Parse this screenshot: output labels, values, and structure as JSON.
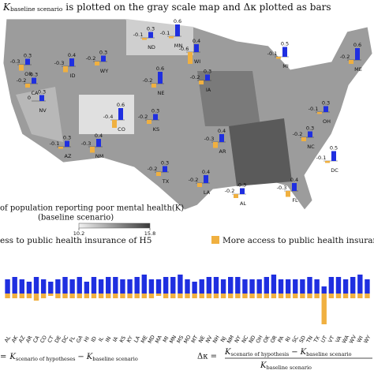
{
  "title": {
    "symbol": "K",
    "subscript": "baseline scenario",
    "text": "is plotted on the gray scale map and Δκ plotted as bars"
  },
  "map": {
    "states": [
      {
        "name": "OR",
        "values": [
          -0.3,
          0.3
        ]
      },
      {
        "name": "ID",
        "values": [
          -0.3,
          0.4
        ]
      },
      {
        "name": "WY",
        "values": [
          -0.2,
          0.3
        ]
      },
      {
        "name": "ND",
        "values": [
          -0.1,
          0.3
        ]
      },
      {
        "name": "MN",
        "values": [
          -0.1,
          0.6
        ]
      },
      {
        "name": "WI",
        "values": [
          -0.6,
          0.4
        ]
      },
      {
        "name": "NE",
        "values": [
          -0.2,
          0.6
        ]
      },
      {
        "name": "IA",
        "values": [
          -0.2,
          0.3
        ]
      },
      {
        "name": "CA",
        "values": [
          -0.2,
          0.3
        ]
      },
      {
        "name": "NV",
        "values": [
          0,
          0.3
        ]
      },
      {
        "name": "CO",
        "values": [
          -0.4,
          0.6
        ]
      },
      {
        "name": "KS",
        "values": [
          -0.2,
          0.3
        ]
      },
      {
        "name": "AZ",
        "values": [
          -0.1,
          0.3
        ]
      },
      {
        "name": "NM",
        "values": [
          -0.3,
          0.4
        ]
      },
      {
        "name": "TX",
        "values": [
          -0.2,
          0.3
        ]
      },
      {
        "name": "AR",
        "values": [
          -0.3,
          0.4
        ]
      },
      {
        "name": "LA",
        "values": [
          -0.2,
          0.4
        ]
      },
      {
        "name": "AL",
        "values": [
          -0.2,
          0.3
        ]
      },
      {
        "name": "FL",
        "values": [
          -0.3,
          0.4
        ]
      },
      {
        "name": "MI",
        "values": [
          -0.1,
          0.5
        ]
      },
      {
        "name": "ME",
        "values": [
          -0.2,
          0.6
        ]
      },
      {
        "name": "OH",
        "values": [
          -0.1,
          0.3
        ]
      },
      {
        "name": "NC",
        "values": [
          -0.2,
          0.3
        ]
      },
      {
        "name": "DC",
        "values": [
          -0.1,
          0.5
        ]
      }
    ]
  },
  "colorbar": {
    "label": "of population reporting poor mental health(K)",
    "sublabel": "(baseline scenario)",
    "ticks": [
      10.2,
      15.8
    ]
  },
  "chart_data": {
    "type": "bar",
    "categories": [
      "AL",
      "AK",
      "AZ",
      "AR",
      "CA",
      "CO",
      "CT",
      "DE",
      "DC",
      "FL",
      "GA",
      "HI",
      "ID",
      "IL",
      "IN",
      "IA",
      "KS",
      "KY",
      "LA",
      "ME",
      "MD",
      "MA",
      "MI",
      "MN",
      "MS",
      "MO",
      "MT",
      "NE",
      "NV",
      "NH",
      "NJ",
      "NM",
      "NY",
      "NC",
      "ND",
      "OH",
      "OK",
      "OR",
      "PA",
      "RI",
      "SC",
      "SD",
      "TN",
      "TX",
      "UT",
      "VT",
      "VA",
      "WA",
      "WV",
      "WI",
      "WY"
    ],
    "series": [
      {
        "name": "ess to public health insurance of H5",
        "color": "#1f2fe0",
        "values": [
          0.6,
          0.7,
          0.6,
          0.5,
          0.7,
          0.6,
          0.5,
          0.6,
          0.7,
          0.6,
          0.7,
          0.5,
          0.7,
          0.6,
          0.7,
          0.7,
          0.6,
          0.6,
          0.7,
          0.8,
          0.6,
          0.6,
          0.7,
          0.7,
          0.8,
          0.6,
          0.5,
          0.6,
          0.7,
          0.7,
          0.6,
          0.7,
          0.7,
          0.6,
          0.6,
          0.6,
          0.7,
          0.8,
          0.6,
          0.6,
          0.6,
          0.6,
          0.7,
          0.6,
          0.3,
          0.7,
          0.7,
          0.6,
          0.7,
          0.8,
          0.6
        ]
      },
      {
        "name": "More access to public health insuran",
        "color": "#f0b040",
        "values": [
          -0.2,
          -0.2,
          -0.2,
          -0.2,
          -0.3,
          -0.2,
          -0.1,
          -0.2,
          -0.2,
          -0.2,
          -0.2,
          -0.2,
          -0.2,
          -0.2,
          -0.2,
          -0.2,
          -0.2,
          -0.2,
          -0.2,
          -0.2,
          -0.2,
          -0.1,
          -0.2,
          -0.2,
          -0.2,
          -0.2,
          -0.2,
          -0.2,
          -0.2,
          -0.2,
          -0.2,
          -0.2,
          -0.2,
          -0.2,
          -0.2,
          -0.2,
          -0.2,
          -0.2,
          -0.2,
          -0.2,
          -0.2,
          -0.2,
          -0.2,
          -0.2,
          -1.3,
          -0.2,
          -0.2,
          -0.2,
          -0.2,
          -0.2,
          -0.2
        ]
      }
    ],
    "ylim": [
      -1.5,
      1.0
    ]
  },
  "formulas": {
    "left": {
      "lhs": "=",
      "a": "K",
      "a_sub": "scenario of hypotheses",
      "minus": "−",
      "b": "K",
      "b_sub": "baseline scenario"
    },
    "right": {
      "lhs": "Δκ =",
      "a": "K",
      "a_sub": "scenario of hypothesis",
      "minus": "−",
      "b": "K",
      "b_sub": "baseline scenario",
      "c": "K",
      "c_sub": "baseline scenario"
    }
  }
}
